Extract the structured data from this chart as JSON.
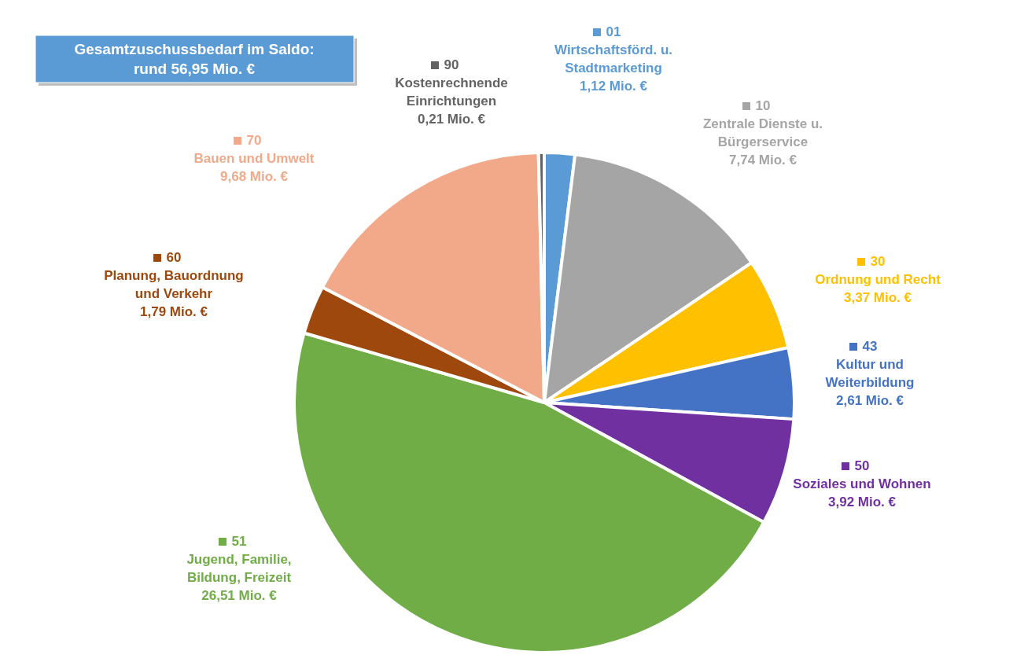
{
  "chart_data": {
    "type": "pie",
    "title": "Gesamtzuschussbedarf im Saldo:\nrund 56,95 Mio. €",
    "categories": [
      "01\nWirtschaftsförd. u.\nStadtmarketing",
      "10\nZentrale Dienste u.\nBürgerservice",
      "30\nOrdnung und Recht",
      "43\nKultur und\nWeiterbildung",
      "50\nSoziales und Wohnen",
      "51\nJugend, Familie,\nBildung, Freizeit",
      "60\nPlanung, Bauordnung\nund Verkehr",
      "70\nBauen und Umwelt",
      "90\nKostenrechnende\nEinrichtungen"
    ],
    "values": [
      1.12,
      7.74,
      3.37,
      2.61,
      3.92,
      26.51,
      1.79,
      9.68,
      0.21
    ],
    "value_labels": [
      "1,12 Mio. €",
      "7,74 Mio. €",
      "3,37 Mio. €",
      "2,61 Mio. €",
      "3,92 Mio. €",
      "26,51 Mio. €",
      "1,79 Mio. €",
      "9,68 Mio. €",
      "0,21 Mio. €"
    ],
    "legend": "right",
    "colors": [
      "#5b9bd5",
      "#a5a5a5",
      "#ffc000",
      "#4472c4",
      "#7030a0",
      "#70ad47",
      "#9e480e",
      "#f1a98a",
      "#636363"
    ]
  }
}
